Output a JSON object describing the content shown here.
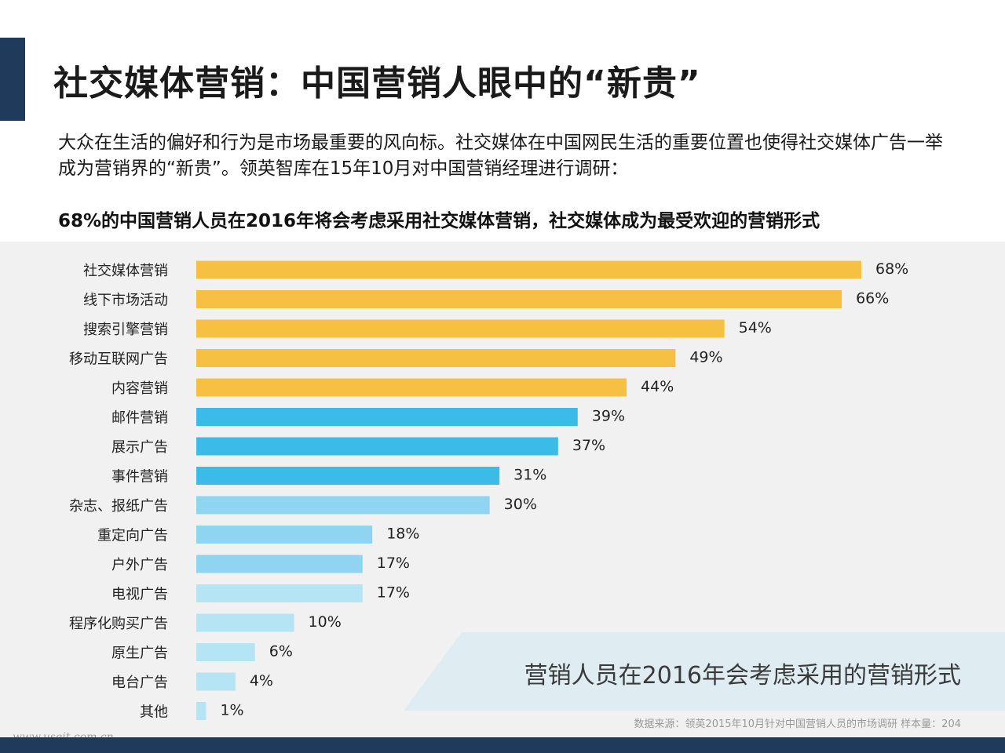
{
  "slide": {
    "title": "社交媒体营销：中国营销人眼中的“新贵”",
    "intro": "大众在生活的偏好和行为是市场最重要的风向标。社交媒体在中国网民生活的重要位置也使得社交媒体广告一举成为营销界的“新贵”。领英智库在15年10月对中国营销经理进行调研：",
    "headline": "68%的中国营销人员在2016年将会考虑采用社交媒体营销，社交媒体成为最受欢迎的营销形式",
    "caption": "营销人员在2016年会考虑采用的营销形式",
    "source": "数据来源：领英2015年10月针对中国营销人员的市场调研  样本量：204",
    "watermark": "www.useit.com.cn"
  },
  "colors": {
    "accent_navy": "#1f3a5a",
    "panel_bg": "#f1f1f1",
    "tier_1": "#f6c142",
    "tier_2": "#3bbce8",
    "tier_3": "#8fd5f1",
    "tier_4": "#b5e4f5"
  },
  "chart_data": {
    "type": "bar",
    "orientation": "horizontal",
    "categories": [
      "社交媒体营销",
      "线下市场活动",
      "搜索引擎营销",
      "移动互联网广告",
      "内容营销",
      "邮件营销",
      "展示广告",
      "事件营销",
      "杂志、报纸广告",
      "重定向广告",
      "户外广告",
      "电视广告",
      "程序化购买广告",
      "原生广告",
      "电台广告",
      "其他"
    ],
    "values": [
      68,
      66,
      54,
      49,
      44,
      39,
      37,
      31,
      30,
      18,
      17,
      17,
      10,
      6,
      4,
      1
    ],
    "value_labels": [
      "68%",
      "66%",
      "54%",
      "49%",
      "44%",
      "39%",
      "37%",
      "31%",
      "30%",
      "18%",
      "17%",
      "17%",
      "10%",
      "6%",
      "4%",
      "1%"
    ],
    "color_tiers": [
      1,
      1,
      1,
      1,
      1,
      2,
      2,
      2,
      3,
      3,
      3,
      4,
      4,
      4,
      4,
      4
    ],
    "unit": "%",
    "xlim": [
      0,
      68
    ],
    "grid": false,
    "legend": "none"
  }
}
